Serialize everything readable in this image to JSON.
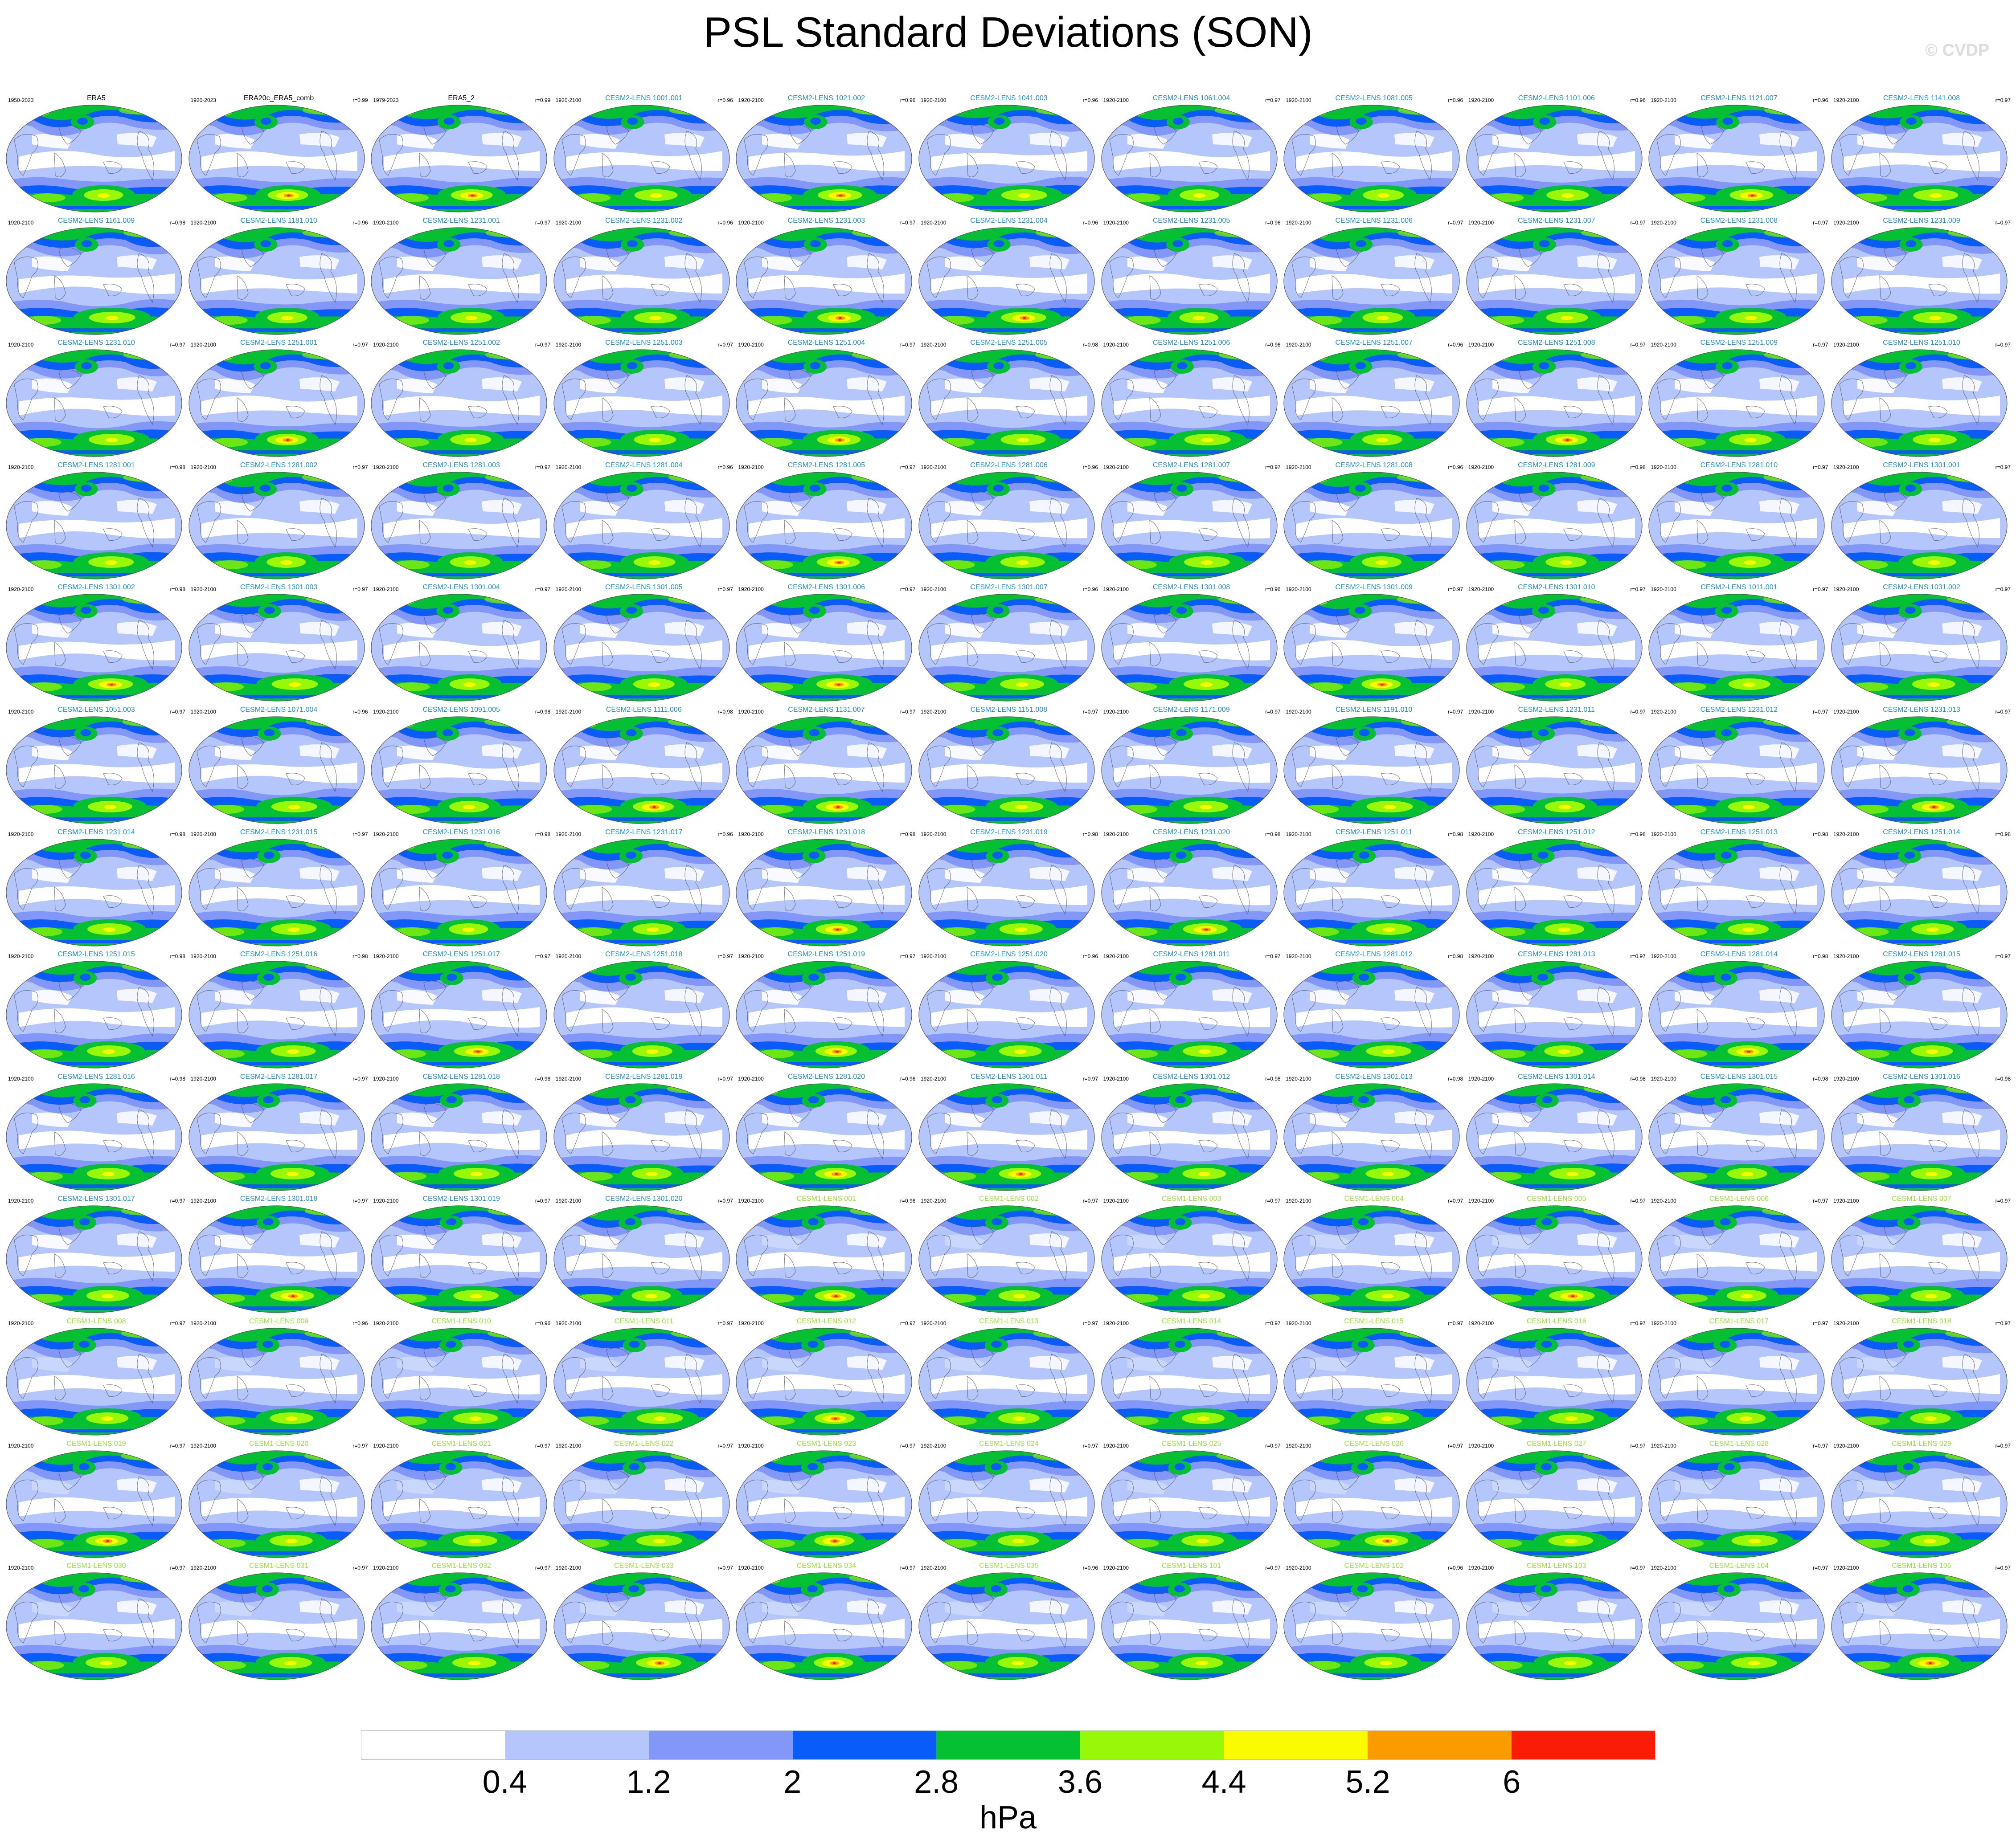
{
  "title": "PSL Standard Deviations (SON)",
  "credit": "© CVDP",
  "chart_data": {
    "type": "heatmap",
    "title": "PSL Standard Deviations (SON)",
    "grid": {
      "rows": 13,
      "cols": 11
    },
    "panels": [
      {
        "period": "1950-2023",
        "name": "ERA5",
        "r": ""
      },
      {
        "period": "1920-2023",
        "name": "ERA20c_ERA5_comb",
        "r": "r=0.99"
      },
      {
        "period": "1979-2023",
        "name": "ERA5_2",
        "r": "r=0.99"
      },
      {
        "period": "1920-2100",
        "name": "CESM2-LENS 1001.001",
        "r": "r=0.96"
      },
      {
        "period": "1920-2100",
        "name": "CESM2-LENS 1021.002",
        "r": "r=0.96"
      },
      {
        "period": "1920-2100",
        "name": "CESM2-LENS 1041.003",
        "r": "r=0.96"
      },
      {
        "period": "1920-2100",
        "name": "CESM2-LENS 1061.004",
        "r": "r=0.97"
      },
      {
        "period": "1920-2100",
        "name": "CESM2-LENS 1081.005",
        "r": "r=0.96"
      },
      {
        "period": "1920-2100",
        "name": "CESM2-LENS 1101.006",
        "r": "r=0.96"
      },
      {
        "period": "1920-2100",
        "name": "CESM2-LENS 1121.007",
        "r": "r=0.96"
      },
      {
        "period": "1920-2100",
        "name": "CESM2-LENS 1141.008",
        "r": "r=0.97"
      },
      {
        "period": "1920-2100",
        "name": "CESM2-LENS 1161.009",
        "r": "r=0.98"
      },
      {
        "period": "1920-2100",
        "name": "CESM2-LENS 1181.010",
        "r": "r=0.96"
      },
      {
        "period": "1920-2100",
        "name": "CESM2-LENS 1231.001",
        "r": "r=0.97"
      },
      {
        "period": "1920-2100",
        "name": "CESM2-LENS 1231.002",
        "r": "r=0.96"
      },
      {
        "period": "1920-2100",
        "name": "CESM2-LENS 1231.003",
        "r": "r=0.97"
      },
      {
        "period": "1920-2100",
        "name": "CESM2-LENS 1231.004",
        "r": "r=0.96"
      },
      {
        "period": "1920-2100",
        "name": "CESM2-LENS 1231.005",
        "r": "r=0.96"
      },
      {
        "period": "1920-2100",
        "name": "CESM2-LENS 1231.006",
        "r": "r=0.97"
      },
      {
        "period": "1920-2100",
        "name": "CESM2-LENS 1231.007",
        "r": "r=0.97"
      },
      {
        "period": "1920-2100",
        "name": "CESM2-LENS 1231.008",
        "r": "r=0.97"
      },
      {
        "period": "1920-2100",
        "name": "CESM2-LENS 1231.009",
        "r": "r=0.97"
      },
      {
        "period": "1920-2100",
        "name": "CESM2-LENS 1231.010",
        "r": "r=0.97"
      },
      {
        "period": "1920-2100",
        "name": "CESM2-LENS 1251.001",
        "r": "r=0.97"
      },
      {
        "period": "1920-2100",
        "name": "CESM2-LENS 1251.002",
        "r": "r=0.97"
      },
      {
        "period": "1920-2100",
        "name": "CESM2-LENS 1251.003",
        "r": "r=0.97"
      },
      {
        "period": "1920-2100",
        "name": "CESM2-LENS 1251.004",
        "r": "r=0.97"
      },
      {
        "period": "1920-2100",
        "name": "CESM2-LENS 1251.005",
        "r": "r=0.98"
      },
      {
        "period": "1920-2100",
        "name": "CESM2-LENS 1251.006",
        "r": "r=0.96"
      },
      {
        "period": "1920-2100",
        "name": "CESM2-LENS 1251.007",
        "r": "r=0.96"
      },
      {
        "period": "1920-2100",
        "name": "CESM2-LENS 1251.008",
        "r": "r=0.97"
      },
      {
        "period": "1920-2100",
        "name": "CESM2-LENS 1251.009",
        "r": "r=0.97"
      },
      {
        "period": "1920-2100",
        "name": "CESM2-LENS 1251.010",
        "r": "r=0.97"
      },
      {
        "period": "1920-2100",
        "name": "CESM2-LENS 1281.001",
        "r": "r=0.98"
      },
      {
        "period": "1920-2100",
        "name": "CESM2-LENS 1281.002",
        "r": "r=0.97"
      },
      {
        "period": "1920-2100",
        "name": "CESM2-LENS 1281.003",
        "r": "r=0.97"
      },
      {
        "period": "1920-2100",
        "name": "CESM2-LENS 1281.004",
        "r": "r=0.96"
      },
      {
        "period": "1920-2100",
        "name": "CESM2-LENS 1281.005",
        "r": "r=0.97"
      },
      {
        "period": "1920-2100",
        "name": "CESM2-LENS 1281.006",
        "r": "r=0.96"
      },
      {
        "period": "1920-2100",
        "name": "CESM2-LENS 1281.007",
        "r": "r=0.97"
      },
      {
        "period": "1920-2100",
        "name": "CESM2-LENS 1281.008",
        "r": "r=0.96"
      },
      {
        "period": "1920-2100",
        "name": "CESM2-LENS 1281.009",
        "r": "r=0.98"
      },
      {
        "period": "1920-2100",
        "name": "CESM2-LENS 1281.010",
        "r": "r=0.97"
      },
      {
        "period": "1920-2100",
        "name": "CESM2-LENS 1301.001",
        "r": "r=0.97"
      },
      {
        "period": "1920-2100",
        "name": "CESM2-LENS 1301.002",
        "r": "r=0.98"
      },
      {
        "period": "1920-2100",
        "name": "CESM2-LENS 1301.003",
        "r": "r=0.97"
      },
      {
        "period": "1920-2100",
        "name": "CESM2-LENS 1301.004",
        "r": "r=0.97"
      },
      {
        "period": "1920-2100",
        "name": "CESM2-LENS 1301.005",
        "r": "r=0.97"
      },
      {
        "period": "1920-2100",
        "name": "CESM2-LENS 1301.006",
        "r": "r=0.97"
      },
      {
        "period": "1920-2100",
        "name": "CESM2-LENS 1301.007",
        "r": "r=0.96"
      },
      {
        "period": "1920-2100",
        "name": "CESM2-LENS 1301.008",
        "r": "r=0.96"
      },
      {
        "period": "1920-2100",
        "name": "CESM2-LENS 1301.009",
        "r": "r=0.97"
      },
      {
        "period": "1920-2100",
        "name": "CESM2-LENS 1301.010",
        "r": "r=0.97"
      },
      {
        "period": "1920-2100",
        "name": "CESM2-LENS 1011.001",
        "r": "r=0.97"
      },
      {
        "period": "1920-2100",
        "name": "CESM2-LENS 1031.002",
        "r": "r=0.97"
      },
      {
        "period": "1920-2100",
        "name": "CESM2-LENS 1051.003",
        "r": "r=0.97"
      },
      {
        "period": "1920-2100",
        "name": "CESM2-LENS 1071.004",
        "r": "r=0.96"
      },
      {
        "period": "1920-2100",
        "name": "CESM2-LENS 1091.005",
        "r": "r=0.98"
      },
      {
        "period": "1920-2100",
        "name": "CESM2-LENS 1111.006",
        "r": "r=0.98"
      },
      {
        "period": "1920-2100",
        "name": "CESM2-LENS 1131.007",
        "r": "r=0.97"
      },
      {
        "period": "1920-2100",
        "name": "CESM2-LENS 1151.008",
        "r": "r=0.97"
      },
      {
        "period": "1920-2100",
        "name": "CESM2-LENS 1171.009",
        "r": "r=0.97"
      },
      {
        "period": "1920-2100",
        "name": "CESM2-LENS 1191.010",
        "r": "r=0.97"
      },
      {
        "period": "1920-2100",
        "name": "CESM2-LENS 1231.011",
        "r": "r=0.97"
      },
      {
        "period": "1920-2100",
        "name": "CESM2-LENS 1231.012",
        "r": "r=0.97"
      },
      {
        "period": "1920-2100",
        "name": "CESM2-LENS 1231.013",
        "r": "r=0.97"
      },
      {
        "period": "1920-2100",
        "name": "CESM2-LENS 1231.014",
        "r": "r=0.98"
      },
      {
        "period": "1920-2100",
        "name": "CESM2-LENS 1231.015",
        "r": "r=0.97"
      },
      {
        "period": "1920-2100",
        "name": "CESM2-LENS 1231.016",
        "r": "r=0.98"
      },
      {
        "period": "1920-2100",
        "name": "CESM2-LENS 1231.017",
        "r": "r=0.96"
      },
      {
        "period": "1920-2100",
        "name": "CESM2-LENS 1231.018",
        "r": "r=0.98"
      },
      {
        "period": "1920-2100",
        "name": "CESM2-LENS 1231.019",
        "r": "r=0.98"
      },
      {
        "period": "1920-2100",
        "name": "CESM2-LENS 1231.020",
        "r": "r=0.98"
      },
      {
        "period": "1920-2100",
        "name": "CESM2-LENS 1251.011",
        "r": "r=0.98"
      },
      {
        "period": "1920-2100",
        "name": "CESM2-LENS 1251.012",
        "r": "r=0.98"
      },
      {
        "period": "1920-2100",
        "name": "CESM2-LENS 1251.013",
        "r": "r=0.98"
      },
      {
        "period": "1920-2100",
        "name": "CESM2-LENS 1251.014",
        "r": "r=0.98"
      },
      {
        "period": "1920-2100",
        "name": "CESM2-LENS 1251.015",
        "r": "r=0.98"
      },
      {
        "period": "1920-2100",
        "name": "CESM2-LENS 1251.016",
        "r": "r=0.98"
      },
      {
        "period": "1920-2100",
        "name": "CESM2-LENS 1251.017",
        "r": "r=0.97"
      },
      {
        "period": "1920-2100",
        "name": "CESM2-LENS 1251.018",
        "r": "r=0.97"
      },
      {
        "period": "1920-2100",
        "name": "CESM2-LENS 1251.019",
        "r": "r=0.97"
      },
      {
        "period": "1920-2100",
        "name": "CESM2-LENS 1251.020",
        "r": "r=0.96"
      },
      {
        "period": "1920-2100",
        "name": "CESM2-LENS 1281.011",
        "r": "r=0.97"
      },
      {
        "period": "1920-2100",
        "name": "CESM2-LENS 1281.012",
        "r": "r=0.98"
      },
      {
        "period": "1920-2100",
        "name": "CESM2-LENS 1281.013",
        "r": "r=0.97"
      },
      {
        "period": "1920-2100",
        "name": "CESM2-LENS 1281.014",
        "r": "r=0.98"
      },
      {
        "period": "1920-2100",
        "name": "CESM2-LENS 1281.015",
        "r": "r=0.97"
      },
      {
        "period": "1920-2100",
        "name": "CESM2-LENS 1281.016",
        "r": "r=0.98"
      },
      {
        "period": "1920-2100",
        "name": "CESM2-LENS 1281.017",
        "r": "r=0.97"
      },
      {
        "period": "1920-2100",
        "name": "CESM2-LENS 1281.018",
        "r": "r=0.98"
      },
      {
        "period": "1920-2100",
        "name": "CESM2-LENS 1281.019",
        "r": "r=0.97"
      },
      {
        "period": "1920-2100",
        "name": "CESM2-LENS 1281.020",
        "r": "r=0.96"
      },
      {
        "period": "1920-2100",
        "name": "CESM2-LENS 1301.011",
        "r": "r=0.97"
      },
      {
        "period": "1920-2100",
        "name": "CESM2-LENS 1301.012",
        "r": "r=0.98"
      },
      {
        "period": "1920-2100",
        "name": "CESM2-LENS 1301.013",
        "r": "r=0.98"
      },
      {
        "period": "1920-2100",
        "name": "CESM2-LENS 1301.014",
        "r": "r=0.98"
      },
      {
        "period": "1920-2100",
        "name": "CESM2-LENS 1301.015",
        "r": "r=0.98"
      },
      {
        "period": "1920-2100",
        "name": "CESM2-LENS 1301.016",
        "r": "r=0.98"
      },
      {
        "period": "1920-2100",
        "name": "CESM2-LENS 1301.017",
        "r": "r=0.97"
      },
      {
        "period": "1920-2100",
        "name": "CESM2-LENS 1301.018",
        "r": "r=0.97"
      },
      {
        "period": "1920-2100",
        "name": "CESM2-LENS 1301.019",
        "r": "r=0.97"
      },
      {
        "period": "1920-2100",
        "name": "CESM2-LENS 1301.020",
        "r": "r=0.97"
      },
      {
        "period": "1920-2100",
        "name": "CESM1-LENS 001",
        "r": "r=0.96"
      },
      {
        "period": "1920-2100",
        "name": "CESM1-LENS 002",
        "r": "r=0.97"
      },
      {
        "period": "1920-2100",
        "name": "CESM1-LENS 003",
        "r": "r=0.97"
      },
      {
        "period": "1920-2100",
        "name": "CESM1-LENS 004",
        "r": "r=0.97"
      },
      {
        "period": "1920-2100",
        "name": "CESM1-LENS 005",
        "r": "r=0.97"
      },
      {
        "period": "1920-2100",
        "name": "CESM1-LENS 006",
        "r": "r=0.97"
      },
      {
        "period": "1920-2100",
        "name": "CESM1-LENS 007",
        "r": "r=0.97"
      },
      {
        "period": "1920-2100",
        "name": "CESM1-LENS 008",
        "r": "r=0.97"
      },
      {
        "period": "1920-2100",
        "name": "CESM1-LENS 009",
        "r": "r=0.96"
      },
      {
        "period": "1920-2100",
        "name": "CESM1-LENS 010",
        "r": "r=0.96"
      },
      {
        "period": "1920-2100",
        "name": "CESM1-LENS 011",
        "r": "r=0.97"
      },
      {
        "period": "1920-2100",
        "name": "CESM1-LENS 012",
        "r": "r=0.97"
      },
      {
        "period": "1920-2100",
        "name": "CESM1-LENS 013",
        "r": "r=0.97"
      },
      {
        "period": "1920-2100",
        "name": "CESM1-LENS 014",
        "r": "r=0.97"
      },
      {
        "period": "1920-2100",
        "name": "CESM1-LENS 015",
        "r": "r=0.97"
      },
      {
        "period": "1920-2100",
        "name": "CESM1-LENS 016",
        "r": "r=0.97"
      },
      {
        "period": "1920-2100",
        "name": "CESM1-LENS 017",
        "r": "r=0.97"
      },
      {
        "period": "1920-2100",
        "name": "CESM1-LENS 018",
        "r": "r=0.97"
      },
      {
        "period": "1920-2100",
        "name": "CESM1-LENS 019",
        "r": "r=0.97"
      },
      {
        "period": "1920-2100",
        "name": "CESM1-LENS 020",
        "r": "r=0.97"
      },
      {
        "period": "1920-2100",
        "name": "CESM1-LENS 021",
        "r": "r=0.97"
      },
      {
        "period": "1920-2100",
        "name": "CESM1-LENS 022",
        "r": "r=0.97"
      },
      {
        "period": "1920-2100",
        "name": "CESM1-LENS 023",
        "r": "r=0.97"
      },
      {
        "period": "1920-2100",
        "name": "CESM1-LENS 024",
        "r": "r=0.97"
      },
      {
        "period": "1920-2100",
        "name": "CESM1-LENS 025",
        "r": "r=0.97"
      },
      {
        "period": "1920-2100",
        "name": "CESM1-LENS 026",
        "r": "r=0.97"
      },
      {
        "period": "1920-2100",
        "name": "CESM1-LENS 027",
        "r": "r=0.97"
      },
      {
        "period": "1920-2100",
        "name": "CESM1-LENS 028",
        "r": "r=0.97"
      },
      {
        "period": "1920-2100",
        "name": "CESM1-LENS 029",
        "r": "r=0.97"
      },
      {
        "period": "1920-2100",
        "name": "CESM1-LENS 030",
        "r": "r=0.97"
      },
      {
        "period": "1920-2100",
        "name": "CESM1-LENS 031",
        "r": "r=0.97"
      },
      {
        "period": "1920-2100",
        "name": "CESM1-LENS 032",
        "r": "r=0.97"
      },
      {
        "period": "1920-2100",
        "name": "CESM1-LENS 033",
        "r": "r=0.97"
      },
      {
        "period": "1920-2100",
        "name": "CESM1-LENS 034",
        "r": "r=0.97"
      },
      {
        "period": "1920-2100",
        "name": "CESM1-LENS 035",
        "r": "r=0.96"
      },
      {
        "period": "1920-2100",
        "name": "CESM1-LENS 101",
        "r": "r=0.97"
      },
      {
        "period": "1920-2100",
        "name": "CESM1-LENS 102",
        "r": "r=0.96"
      },
      {
        "period": "1920-2100",
        "name": "CESM1-LENS 103",
        "r": "r=0.97"
      },
      {
        "period": "1920-2100",
        "name": "CESM1-LENS 104",
        "r": "r=0.97"
      },
      {
        "period": "1920-2100",
        "name": "CESM1-LENS 105",
        "r": "r=0.97"
      }
    ],
    "name_colors": {
      "observations": "#000000",
      "CESM2-LENS": "#1f8fc8",
      "CESM1-LENS": "#9be03a"
    },
    "colorbar": {
      "levels": [
        0.4,
        1.2,
        2,
        2.8,
        3.6,
        4.4,
        5.2,
        6
      ],
      "tick_labels": [
        "0.4",
        "1.2",
        "2",
        "2.8",
        "3.6",
        "4.4",
        "5.2",
        "6"
      ],
      "colors": [
        "#ffffff",
        "#b4c6fb",
        "#8297f7",
        "#0a5cfa",
        "#05c032",
        "#98f808",
        "#fbfb00",
        "#fa9b00",
        "#fa1c06"
      ],
      "units": "hPa"
    }
  }
}
